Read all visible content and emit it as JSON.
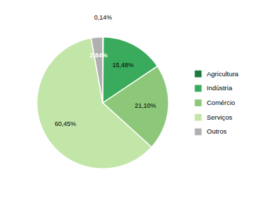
{
  "chart_data": {
    "type": "pie",
    "categories": [
      "Agricultura",
      "Indústria",
      "Comércio",
      "Serviços",
      "Outros"
    ],
    "values": [
      0.14,
      15.48,
      21.1,
      60.45,
      2.84
    ],
    "colors": [
      "#1e7a40",
      "#3aab5c",
      "#8dc87a",
      "#c2e6a8",
      "#b0b0b0"
    ],
    "value_labels": [
      "0,14%",
      "15,48%",
      "21,10%",
      "60,45%",
      "2,84%"
    ],
    "data_labels": true,
    "legend": "right"
  }
}
